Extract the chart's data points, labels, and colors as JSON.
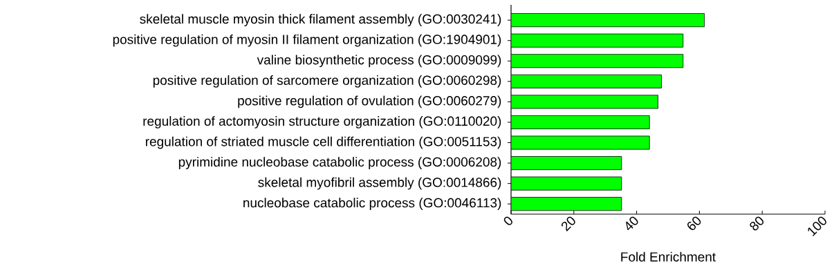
{
  "chart_data": {
    "type": "bar",
    "orientation": "horizontal",
    "xlabel": "Fold Enrichment",
    "categories": [
      "skeletal muscle myosin thick filament assembly (GO:0030241)",
      "positive regulation of myosin II filament organization (GO:1904901)",
      "valine biosynthetic process (GO:0009099)",
      "positive regulation of sarcomere organization (GO:0060298)",
      "positive regulation of ovulation (GO:0060279)",
      "regulation of actomyosin structure organization (GO:0110020)",
      "regulation of striated muscle cell differentiation (GO:0051153)",
      "pyrimidine nucleobase catabolic process (GO:0006208)",
      "skeletal myofibril assembly (GO:0014866)",
      "nucleobase catabolic process (GO:0046113)"
    ],
    "values": [
      61.6,
      54.8,
      54.8,
      47.9,
      46.8,
      44.1,
      44.1,
      35.2,
      35.2,
      35.2
    ],
    "color": "#00ff00",
    "xlim": [
      0,
      100
    ],
    "xticks": [
      0,
      20,
      40,
      60,
      80,
      100
    ]
  }
}
